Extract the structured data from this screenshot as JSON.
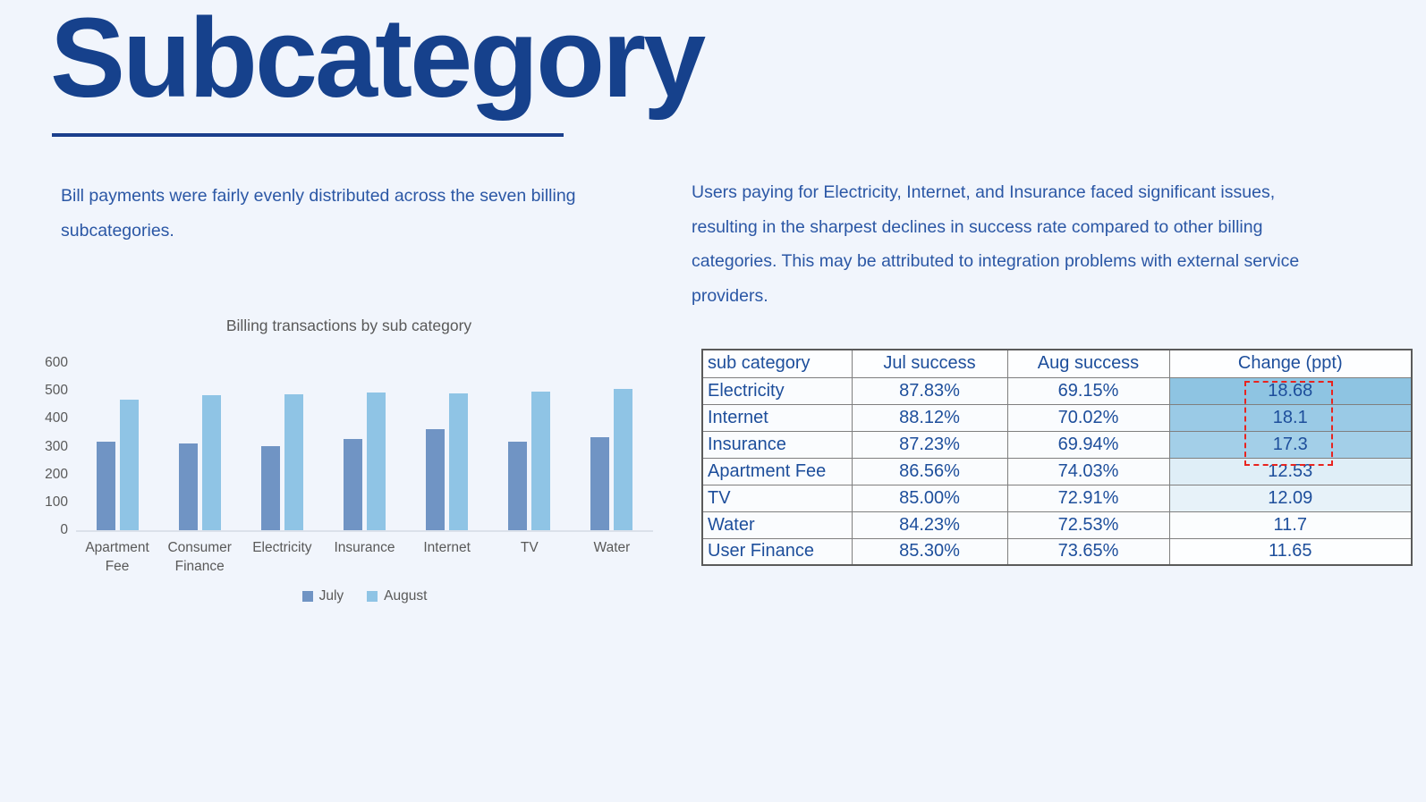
{
  "page": {
    "background": "#f1f5fc"
  },
  "title": {
    "text": "Subcategory",
    "color": "#16418c"
  },
  "notes": {
    "left": "Bill payments were fairly evenly distributed across the seven billing subcategories.",
    "right": "Users paying for Electricity, Internet, and Insurance faced significant issues, resulting in the sharpest declines in success rate compared to other billing categories. This may be attributed to integration problems with external service providers."
  },
  "chart_data": [
    {
      "type": "bar",
      "title": "Billing transactions by sub category",
      "categories": [
        "Apartment Fee",
        "Consumer Finance",
        "Electricity",
        "Insurance",
        "Internet",
        "TV",
        "Water"
      ],
      "series": [
        {
          "name": "July",
          "color": "#7094c4",
          "values": [
            318,
            310,
            302,
            328,
            362,
            318,
            335
          ]
        },
        {
          "name": "August",
          "color": "#8fc4e5",
          "values": [
            468,
            486,
            487,
            493,
            491,
            496,
            507
          ]
        }
      ],
      "xlabel": "",
      "ylabel": "",
      "ylim": [
        0,
        600
      ],
      "y_ticks": [
        600,
        500,
        400,
        300,
        200,
        100,
        0
      ],
      "grid": false,
      "legend_position": "bottom"
    },
    {
      "type": "table",
      "headers": [
        "sub category",
        "Jul success",
        "Aug success",
        "Change (ppt)"
      ],
      "rows": [
        {
          "sub_category": "Electricity",
          "jul": "87.83%",
          "aug": "69.15%",
          "change": "18.68",
          "change_bg": "#8ec4e2"
        },
        {
          "sub_category": "Internet",
          "jul": "88.12%",
          "aug": "70.02%",
          "change": "18.1",
          "change_bg": "#9acae6"
        },
        {
          "sub_category": "Insurance",
          "jul": "87.23%",
          "aug": "69.94%",
          "change": "17.3",
          "change_bg": "#a3cfe8"
        },
        {
          "sub_category": "Apartment Fee",
          "jul": "86.56%",
          "aug": "74.03%",
          "change": "12.53",
          "change_bg": "#dfeef7"
        },
        {
          "sub_category": "TV",
          "jul": "85.00%",
          "aug": "72.91%",
          "change": "12.09",
          "change_bg": "#e7f2f9"
        },
        {
          "sub_category": "Water",
          "jul": "84.23%",
          "aug": "72.53%",
          "change": "11.7",
          "change_bg": "#fbfdfe"
        },
        {
          "sub_category": "User Finance",
          "jul": "85.30%",
          "aug": "73.65%",
          "change": "11.65",
          "change_bg": "#fdfeff"
        }
      ],
      "annotation": {
        "shape": "red-dashed-box",
        "color": "#e8241f",
        "covers_rows": [
          "Electricity",
          "Internet",
          "Insurance"
        ]
      }
    }
  ]
}
